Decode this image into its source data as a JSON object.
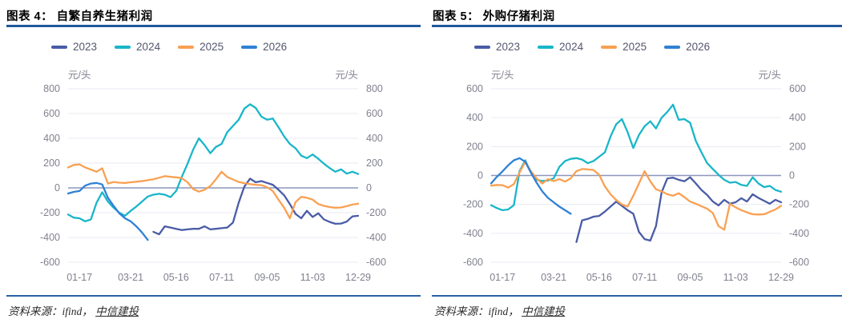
{
  "colors": {
    "2023": "#4A5CA6",
    "2024": "#19B6C9",
    "2025": "#F9A052",
    "2026": "#2F81D5",
    "grid": "#E8EAF3",
    "zero_line": "#8C96BB",
    "axis_text": "#80818F",
    "legend_text": "#54566F",
    "title_rule": "#20579B"
  },
  "panels": [
    {
      "title": "图表 4：  自繁自养生猪利润",
      "unit_left": "元/头",
      "unit_right": "元/头",
      "source_prefix": "资料来源：ifind，  ",
      "source_link": "中信建投"
    },
    {
      "title": "图表 5：  外购仔猪利润",
      "unit_left": "元/头",
      "unit_right": "元/头",
      "source_prefix": "资料来源：ifind，  ",
      "source_link": "中信建投"
    }
  ],
  "chart_data": [
    {
      "type": "line",
      "title": "自繁自养生猪利润",
      "ylabel": "元/头",
      "ylim": [
        -600,
        800
      ],
      "ytick_step": 200,
      "grid": true,
      "legend_position": "top-left",
      "x_labels": [
        "01-17",
        "03-21",
        "05-16",
        "07-11",
        "09-05",
        "11-03",
        "12-29"
      ],
      "x_label_index": [
        2,
        11,
        19,
        27,
        35,
        43,
        51
      ],
      "weeks": 52,
      "series": [
        {
          "name": "2023",
          "values": [
            null,
            null,
            null,
            null,
            null,
            null,
            null,
            null,
            null,
            null,
            null,
            null,
            null,
            null,
            null,
            -355,
            -375,
            -310,
            -320,
            -330,
            -340,
            -335,
            -330,
            -330,
            -310,
            -335,
            -330,
            -325,
            -320,
            -280,
            -120,
            10,
            75,
            45,
            55,
            40,
            25,
            -15,
            -60,
            -130,
            -210,
            -245,
            -185,
            -235,
            -205,
            -255,
            -275,
            -290,
            -288,
            -272,
            -230,
            -225
          ]
        },
        {
          "name": "2024",
          "values": [
            -215,
            -240,
            -245,
            -270,
            -255,
            -120,
            -35,
            -110,
            -160,
            -200,
            -225,
            -185,
            -150,
            -110,
            -70,
            -55,
            -48,
            -55,
            -75,
            -25,
            90,
            195,
            310,
            400,
            345,
            280,
            330,
            355,
            450,
            500,
            550,
            640,
            675,
            645,
            575,
            550,
            560,
            490,
            415,
            355,
            320,
            260,
            240,
            270,
            235,
            195,
            160,
            130,
            150,
            115,
            130,
            112
          ]
        },
        {
          "name": "2025",
          "values": [
            165,
            185,
            190,
            165,
            148,
            130,
            158,
            35,
            48,
            42,
            40,
            45,
            50,
            55,
            62,
            70,
            82,
            95,
            90,
            85,
            78,
            45,
            -10,
            -30,
            -15,
            15,
            70,
            130,
            88,
            68,
            48,
            38,
            30,
            25,
            22,
            5,
            -25,
            -95,
            -160,
            -245,
            -115,
            -72,
            -80,
            -95,
            -130,
            -145,
            -155,
            -160,
            -158,
            -148,
            -135,
            -128
          ]
        },
        {
          "name": "2026",
          "values": [
            -45,
            -32,
            -25,
            18,
            35,
            40,
            28,
            -80,
            -145,
            -205,
            -245,
            -270,
            -310,
            -360,
            -420,
            null,
            null,
            null,
            null,
            null,
            null,
            null,
            null,
            null,
            null,
            null,
            null,
            null,
            null,
            null,
            null,
            null,
            null,
            null,
            null,
            null,
            null,
            null,
            null,
            null,
            null,
            null,
            null,
            null,
            null,
            null,
            null,
            null,
            null,
            null,
            null,
            null
          ]
        }
      ]
    },
    {
      "type": "line",
      "title": "外购仔猪利润",
      "ylabel": "元/头",
      "ylim": [
        -600,
        600
      ],
      "ytick_step": 200,
      "grid": true,
      "legend_position": "top-left",
      "x_labels": [
        "01-17",
        "03-21",
        "05-16",
        "07-11",
        "09-05",
        "11-03",
        "12-29"
      ],
      "x_label_index": [
        2,
        11,
        19,
        27,
        35,
        43,
        51
      ],
      "weeks": 52,
      "series": [
        {
          "name": "2023",
          "values": [
            null,
            null,
            null,
            null,
            null,
            null,
            null,
            null,
            null,
            null,
            null,
            null,
            null,
            null,
            null,
            -460,
            -310,
            -300,
            -285,
            -280,
            -250,
            -215,
            -180,
            -210,
            -240,
            -265,
            -390,
            -440,
            -450,
            -350,
            -115,
            -20,
            -15,
            -30,
            -40,
            -12,
            -55,
            -100,
            -135,
            -180,
            -207,
            -168,
            -195,
            -185,
            -157,
            -180,
            -130,
            -155,
            -175,
            -195,
            -168,
            -185
          ]
        },
        {
          "name": "2024",
          "values": [
            -205,
            -225,
            -240,
            -235,
            -205,
            30,
            105,
            20,
            -30,
            -38,
            -35,
            -20,
            60,
            100,
            115,
            120,
            110,
            85,
            100,
            130,
            160,
            270,
            355,
            390,
            300,
            190,
            280,
            340,
            375,
            325,
            400,
            440,
            490,
            385,
            390,
            365,
            240,
            160,
            85,
            45,
            5,
            -30,
            -50,
            -45,
            -65,
            -72,
            -12,
            -55,
            -80,
            -72,
            -100,
            -112
          ]
        },
        {
          "name": "2025",
          "values": [
            -70,
            -65,
            -67,
            -84,
            -60,
            20,
            95,
            30,
            -20,
            -56,
            -25,
            -39,
            -25,
            -42,
            -20,
            30,
            45,
            42,
            38,
            5,
            -75,
            -130,
            -170,
            -200,
            -215,
            -140,
            -56,
            30,
            -40,
            -95,
            -110,
            -130,
            -140,
            -123,
            -150,
            -180,
            -195,
            -213,
            -230,
            -260,
            -350,
            -375,
            -196,
            -220,
            -240,
            -255,
            -268,
            -270,
            -268,
            -252,
            -235,
            -210
          ]
        },
        {
          "name": "2026",
          "values": [
            -55,
            -10,
            28,
            70,
            105,
            120,
            95,
            20,
            -50,
            -110,
            -155,
            -185,
            -215,
            -240,
            -265,
            null,
            null,
            null,
            null,
            null,
            null,
            null,
            null,
            null,
            null,
            null,
            null,
            null,
            null,
            null,
            null,
            null,
            null,
            null,
            null,
            null,
            null,
            null,
            null,
            null,
            null,
            null,
            null,
            null,
            null,
            null,
            null,
            null,
            null,
            null,
            null,
            null
          ]
        }
      ]
    }
  ]
}
